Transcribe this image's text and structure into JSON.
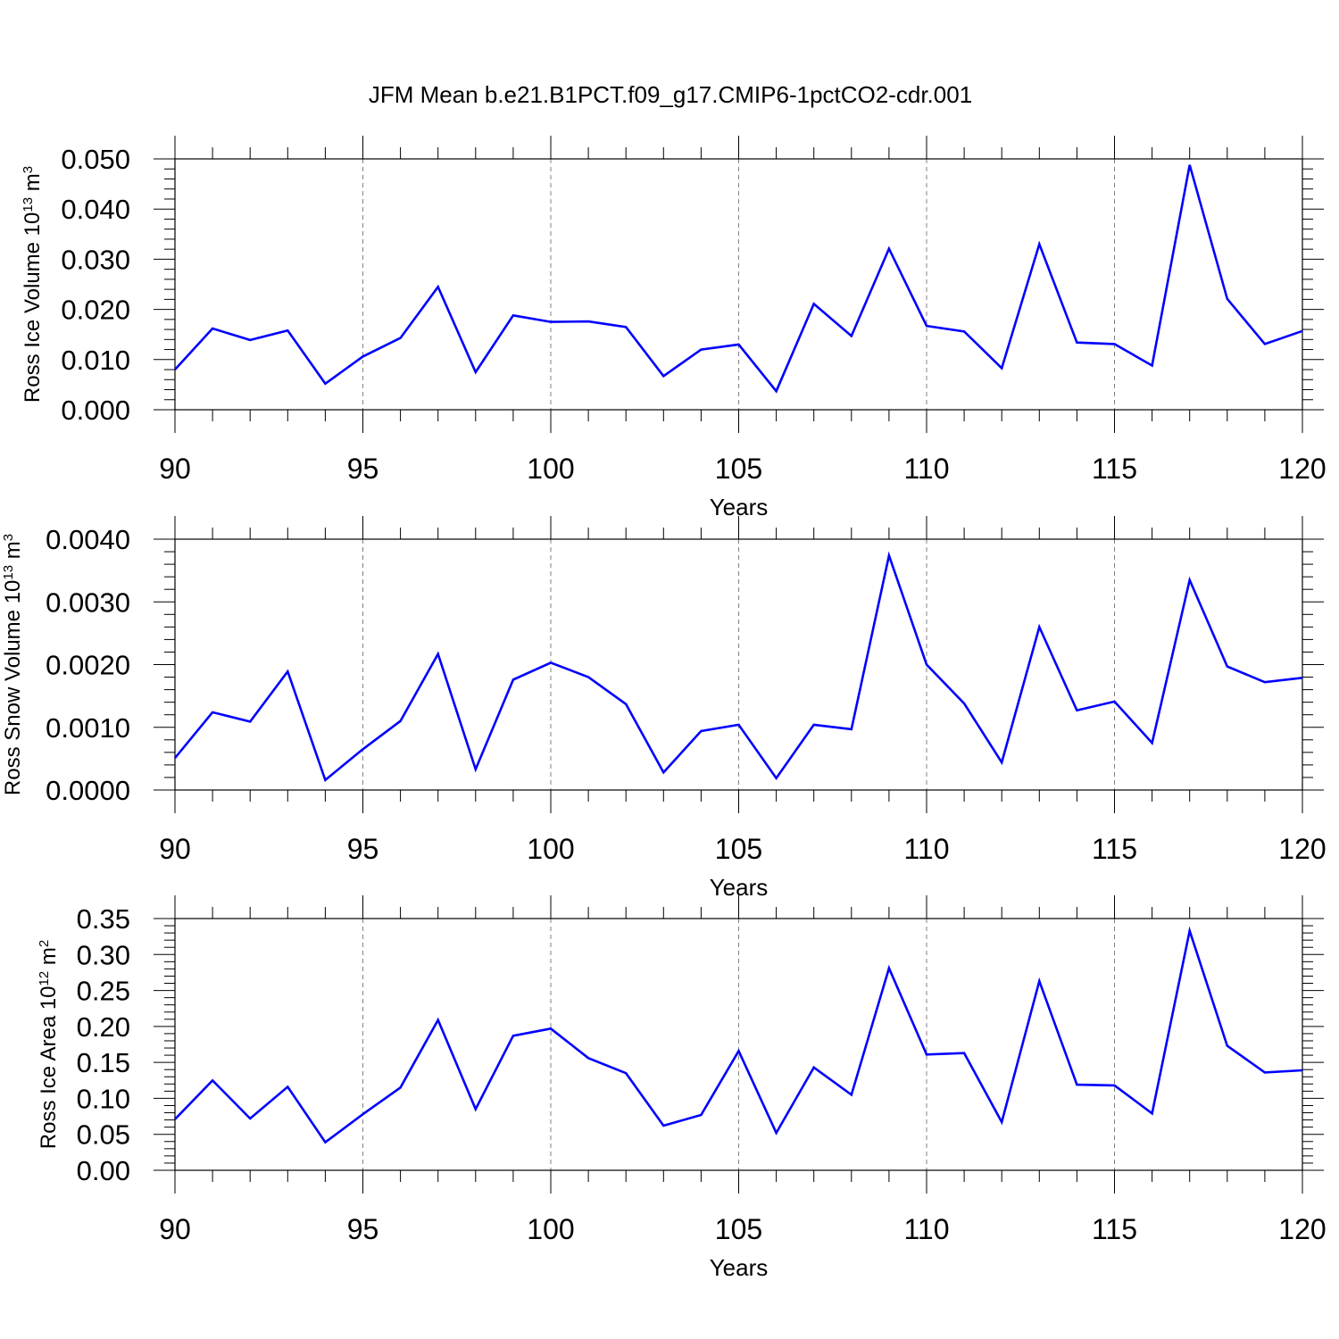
{
  "title": "JFM Mean b.e21.B1PCT.f09_g17.CMIP6-1pctCO2-cdr.001",
  "colors": {
    "line": "#0000ff",
    "axis": "#000000",
    "grid": "#808080"
  },
  "panels": [
    {
      "ylabel_main": "Ross Ice Volume 10",
      "ylabel_exp": "13",
      "ylabel_unit": " m",
      "ylabel_unit_exp": "3",
      "xlabel": "Years",
      "x_ticks": [
        "90",
        "95",
        "100",
        "105",
        "110",
        "115",
        "120"
      ],
      "y_ticks": [
        "0.000",
        "0.010",
        "0.020",
        "0.030",
        "0.040",
        "0.050"
      ]
    },
    {
      "ylabel_main": "Ross Snow Volume 10",
      "ylabel_exp": "13",
      "ylabel_unit": " m",
      "ylabel_unit_exp": "3",
      "xlabel": "Years",
      "x_ticks": [
        "90",
        "95",
        "100",
        "105",
        "110",
        "115",
        "120"
      ],
      "y_ticks": [
        "0.0000",
        "0.0010",
        "0.0020",
        "0.0030",
        "0.0040"
      ]
    },
    {
      "ylabel_main": "Ross Ice Area 10",
      "ylabel_exp": "12",
      "ylabel_unit": " m",
      "ylabel_unit_exp": "2",
      "xlabel": "Years",
      "x_ticks": [
        "90",
        "95",
        "100",
        "105",
        "110",
        "115",
        "120"
      ],
      "y_ticks": [
        "0.00",
        "0.05",
        "0.10",
        "0.15",
        "0.20",
        "0.25",
        "0.30",
        "0.35"
      ]
    }
  ],
  "chart_data": [
    {
      "type": "line",
      "title": "JFM Mean b.e21.B1PCT.f09_g17.CMIP6-1pctCO2-cdr.001",
      "xlabel": "Years",
      "ylabel": "Ross Ice Volume 10^13 m^3",
      "xlim": [
        90,
        120
      ],
      "ylim": [
        0,
        0.05
      ],
      "grid": "vertical dashed at 95, 100, 105, 110, 115",
      "x": [
        90,
        91,
        92,
        93,
        94,
        95,
        96,
        97,
        98,
        99,
        100,
        101,
        102,
        103,
        104,
        105,
        106,
        107,
        108,
        109,
        110,
        111,
        112,
        113,
        114,
        115,
        116,
        117,
        118,
        119,
        120
      ],
      "series": [
        {
          "values": [
            0.008,
            0.0162,
            0.0139,
            0.0158,
            0.0052,
            0.0106,
            0.0143,
            0.0245,
            0.0075,
            0.0188,
            0.0175,
            0.0176,
            0.0165,
            0.0067,
            0.012,
            0.013,
            0.0037,
            0.0211,
            0.0147,
            0.0321,
            0.0167,
            0.0156,
            0.0083,
            0.033,
            0.0134,
            0.0131,
            0.0088,
            0.0488,
            0.0221,
            0.0131,
            0.0157
          ]
        }
      ]
    },
    {
      "type": "line",
      "xlabel": "Years",
      "ylabel": "Ross Snow Volume 10^13 m^3",
      "xlim": [
        90,
        120
      ],
      "ylim": [
        0,
        0.004
      ],
      "grid": "vertical dashed at 95, 100, 105, 110, 115",
      "x": [
        90,
        91,
        92,
        93,
        94,
        95,
        96,
        97,
        98,
        99,
        100,
        101,
        102,
        103,
        104,
        105,
        106,
        107,
        108,
        109,
        110,
        111,
        112,
        113,
        114,
        115,
        116,
        117,
        118,
        119,
        120
      ],
      "series": [
        {
          "values": [
            0.00051,
            0.00124,
            0.00109,
            0.00189,
            0.00016,
            0.00065,
            0.0011,
            0.00217,
            0.00033,
            0.00176,
            0.00203,
            0.0018,
            0.00137,
            0.00028,
            0.00094,
            0.00104,
            0.00019,
            0.00104,
            0.00097,
            0.00374,
            0.002,
            0.00138,
            0.00044,
            0.0026,
            0.00127,
            0.00141,
            0.00075,
            0.00335,
            0.00197,
            0.00172,
            0.00179
          ]
        }
      ]
    },
    {
      "type": "line",
      "xlabel": "Years",
      "ylabel": "Ross Ice Area 10^12 m^2",
      "xlim": [
        90,
        120
      ],
      "ylim": [
        0,
        0.35
      ],
      "grid": "vertical dashed at 95, 100, 105, 110, 115",
      "x": [
        90,
        91,
        92,
        93,
        94,
        95,
        96,
        97,
        98,
        99,
        100,
        101,
        102,
        103,
        104,
        105,
        106,
        107,
        108,
        109,
        110,
        111,
        112,
        113,
        114,
        115,
        116,
        117,
        118,
        119,
        120
      ],
      "series": [
        {
          "values": [
            0.071,
            0.125,
            0.072,
            0.116,
            0.039,
            0.078,
            0.115,
            0.209,
            0.085,
            0.187,
            0.197,
            0.156,
            0.135,
            0.062,
            0.077,
            0.166,
            0.052,
            0.143,
            0.105,
            0.281,
            0.161,
            0.163,
            0.067,
            0.263,
            0.119,
            0.118,
            0.079,
            0.333,
            0.173,
            0.136,
            0.139
          ]
        }
      ]
    }
  ]
}
